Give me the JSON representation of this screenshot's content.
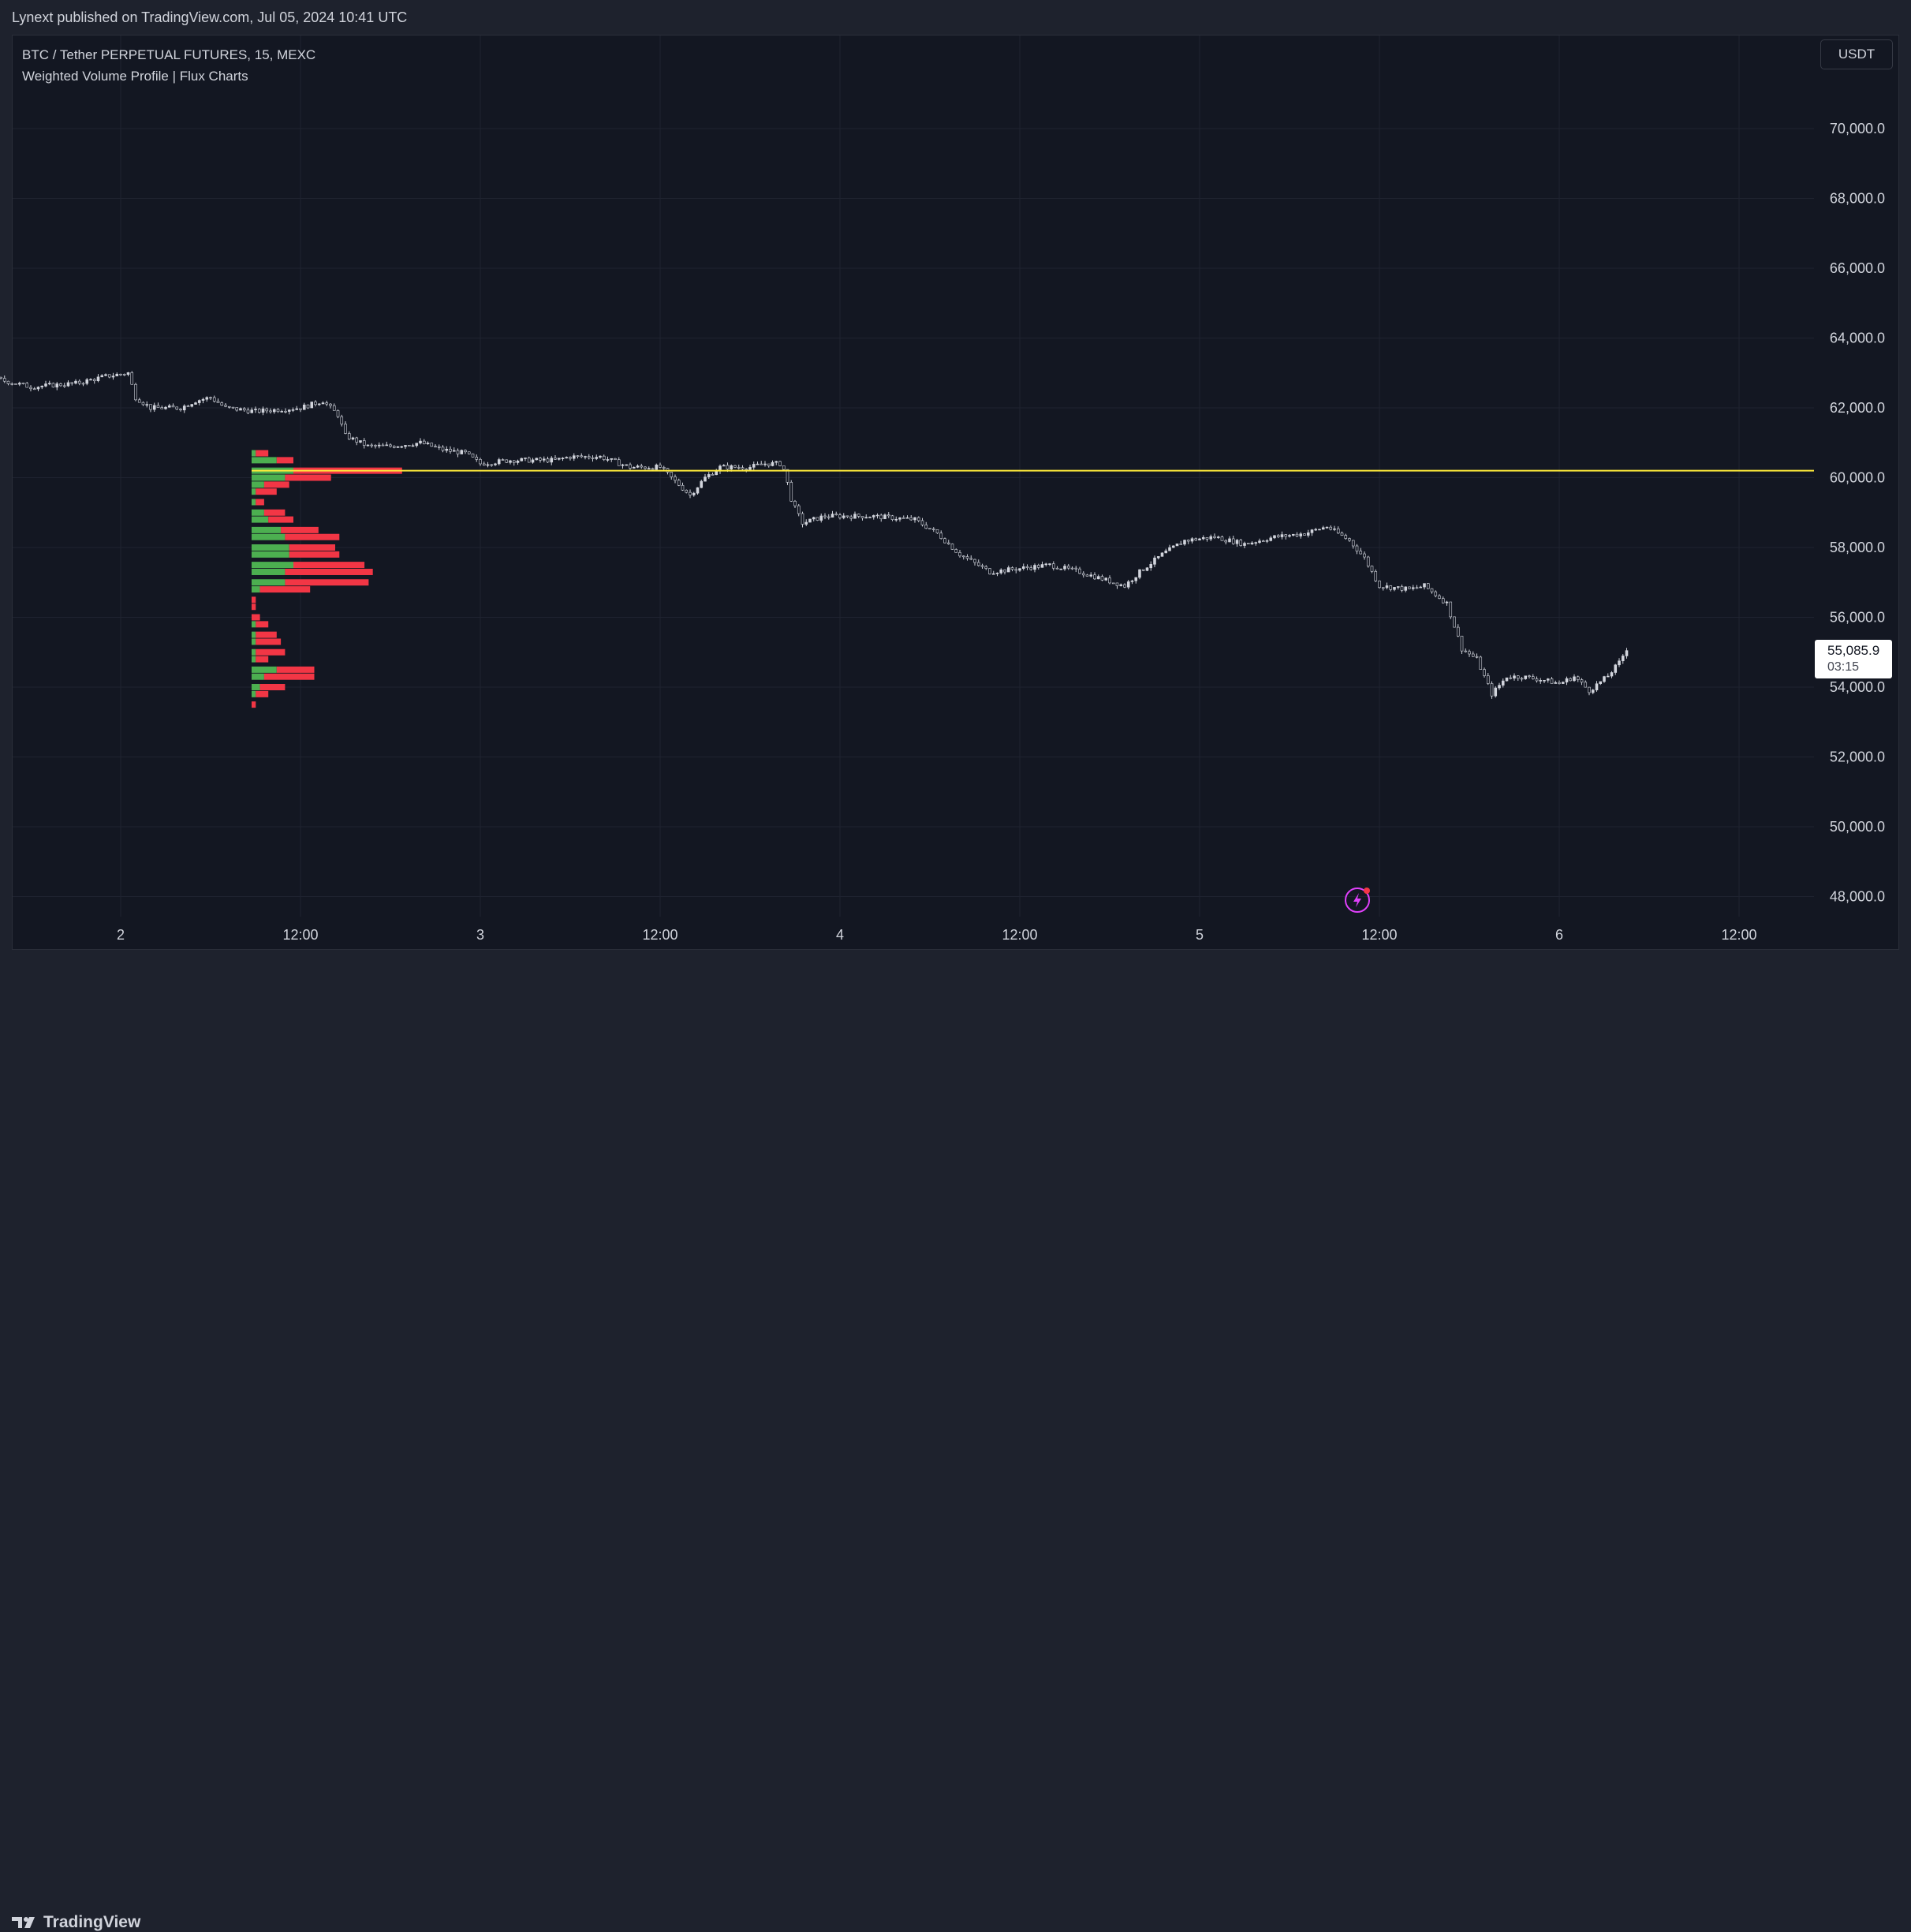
{
  "header": {
    "published_by": "Lynext published on TradingView.com, Jul 05, 2024 10:41 UTC"
  },
  "legend": {
    "symbol_line": "BTC / Tether PERPETUAL FUTURES, 15, MEXC",
    "indicator_line": "Weighted Volume Profile | Flux Charts"
  },
  "currency_button": "USDT",
  "last_price": {
    "value": "55,085.9",
    "countdown": "03:15"
  },
  "footer": {
    "brand": "TradingView"
  },
  "icons": {
    "flash": "lightning-icon",
    "logo": "tradingview-logo-icon"
  },
  "colors": {
    "background": "#131722",
    "grid": "#1e222d",
    "candles": "#d1d4dc",
    "volume_up": "#4caf50",
    "volume_down": "#f23645",
    "poc_line": "#ffeb3b"
  },
  "chart_data": {
    "type": "candlestick",
    "x_ticks": [
      "2",
      "12:00",
      "3",
      "12:00",
      "4",
      "12:00",
      "5",
      "12:00",
      "6",
      "12:00"
    ],
    "y_ticks": [
      "70,000.0",
      "68,000.0",
      "66,000.0",
      "64,000.0",
      "62,000.0",
      "60,000.0",
      "58,000.0",
      "56,000.0",
      "54,000.0",
      "52,000.0",
      "50,000.0",
      "48,000.0"
    ],
    "y_range": [
      47500,
      71000
    ],
    "x_range_hours": [
      -26,
      96
    ],
    "price_path": [
      [
        -26,
        63200
      ],
      [
        -24.6,
        63600
      ],
      [
        -23,
        63500
      ],
      [
        -21,
        63100
      ],
      [
        -19,
        62900
      ],
      [
        -15,
        62900
      ],
      [
        -12,
        63100
      ],
      [
        -8,
        62800
      ],
      [
        -6,
        62600
      ],
      [
        -3,
        62700
      ],
      [
        -1,
        62900
      ],
      [
        0.5,
        63000
      ],
      [
        1,
        62300
      ],
      [
        2,
        62000
      ],
      [
        4,
        62000
      ],
      [
        5,
        62200
      ],
      [
        6,
        62300
      ],
      [
        7,
        62000
      ],
      [
        9,
        61900
      ],
      [
        12,
        62000
      ],
      [
        13.5,
        62200
      ],
      [
        14.5,
        61800
      ],
      [
        15,
        61200
      ],
      [
        16.5,
        60900
      ],
      [
        18,
        60900
      ],
      [
        20,
        61000
      ],
      [
        21.5,
        60800
      ],
      [
        23,
        60700
      ],
      [
        24,
        60400
      ],
      [
        26,
        60500
      ],
      [
        29,
        60500
      ],
      [
        30,
        60600
      ],
      [
        32,
        60600
      ],
      [
        34,
        60300
      ],
      [
        36,
        60300
      ],
      [
        37,
        59900
      ],
      [
        38,
        59500
      ],
      [
        39,
        60000
      ],
      [
        40,
        60300
      ],
      [
        42,
        60300
      ],
      [
        43,
        60400
      ],
      [
        44,
        60400
      ],
      [
        44.3,
        60200
      ],
      [
        44.8,
        59300
      ],
      [
        45.5,
        58700
      ],
      [
        47,
        58900
      ],
      [
        50,
        58900
      ],
      [
        53,
        58800
      ],
      [
        54.5,
        58400
      ],
      [
        56,
        57800
      ],
      [
        58,
        57300
      ],
      [
        60,
        57400
      ],
      [
        62,
        57500
      ],
      [
        64,
        57300
      ],
      [
        65.5,
        57100
      ],
      [
        67,
        56900
      ],
      [
        68,
        57300
      ],
      [
        69.5,
        57800
      ],
      [
        71,
        58200
      ],
      [
        73,
        58300
      ],
      [
        75,
        58100
      ],
      [
        77,
        58300
      ],
      [
        79,
        58400
      ],
      [
        80.5,
        58600
      ],
      [
        82,
        58200
      ],
      [
        83,
        57700
      ],
      [
        84,
        56900
      ],
      [
        86,
        56800
      ],
      [
        87,
        56900
      ],
      [
        88.5,
        56400
      ],
      [
        89.5,
        55100
      ],
      [
        90.5,
        54800
      ],
      [
        91.5,
        53800
      ],
      [
        92.5,
        54300
      ],
      [
        93.5,
        54300
      ],
      [
        95,
        54200
      ],
      [
        96,
        54100
      ],
      [
        97,
        54300
      ],
      [
        98,
        53900
      ],
      [
        99.2,
        54300
      ],
      [
        100,
        54700
      ],
      [
        100.5,
        55100
      ]
    ],
    "poc_level": 60200,
    "volume_profile": {
      "start_hour": 24,
      "rows": [
        {
          "price": 60700,
          "buy": 1,
          "sell": 3
        },
        {
          "price": 60500,
          "buy": 6,
          "sell": 4
        },
        {
          "price": 60200,
          "buy": 10,
          "sell": 26
        },
        {
          "price": 60000,
          "buy": 8,
          "sell": 11
        },
        {
          "price": 59800,
          "buy": 3,
          "sell": 6
        },
        {
          "price": 59600,
          "buy": 1,
          "sell": 5
        },
        {
          "price": 59300,
          "buy": 1,
          "sell": 2
        },
        {
          "price": 59000,
          "buy": 3,
          "sell": 5
        },
        {
          "price": 58800,
          "buy": 4,
          "sell": 6
        },
        {
          "price": 58500,
          "buy": 7,
          "sell": 9
        },
        {
          "price": 58300,
          "buy": 8,
          "sell": 13
        },
        {
          "price": 58000,
          "buy": 9,
          "sell": 11
        },
        {
          "price": 57800,
          "buy": 9,
          "sell": 12
        },
        {
          "price": 57500,
          "buy": 10,
          "sell": 17
        },
        {
          "price": 57300,
          "buy": 8,
          "sell": 21
        },
        {
          "price": 57000,
          "buy": 8,
          "sell": 20
        },
        {
          "price": 56800,
          "buy": 2,
          "sell": 12
        },
        {
          "price": 56500,
          "buy": 0,
          "sell": 1
        },
        {
          "price": 56300,
          "buy": 0,
          "sell": 1
        },
        {
          "price": 56000,
          "buy": 0,
          "sell": 2
        },
        {
          "price": 55800,
          "buy": 1,
          "sell": 3
        },
        {
          "price": 55500,
          "buy": 1,
          "sell": 5
        },
        {
          "price": 55300,
          "buy": 1,
          "sell": 6
        },
        {
          "price": 55000,
          "buy": 1,
          "sell": 7
        },
        {
          "price": 54800,
          "buy": 1,
          "sell": 3
        },
        {
          "price": 54500,
          "buy": 6,
          "sell": 9
        },
        {
          "price": 54300,
          "buy": 3,
          "sell": 12
        },
        {
          "price": 54000,
          "buy": 2,
          "sell": 6
        },
        {
          "price": 53800,
          "buy": 1,
          "sell": 3
        },
        {
          "price": 53500,
          "buy": 0,
          "sell": 1
        }
      ]
    },
    "grid": true,
    "legend_position": "top-left"
  }
}
